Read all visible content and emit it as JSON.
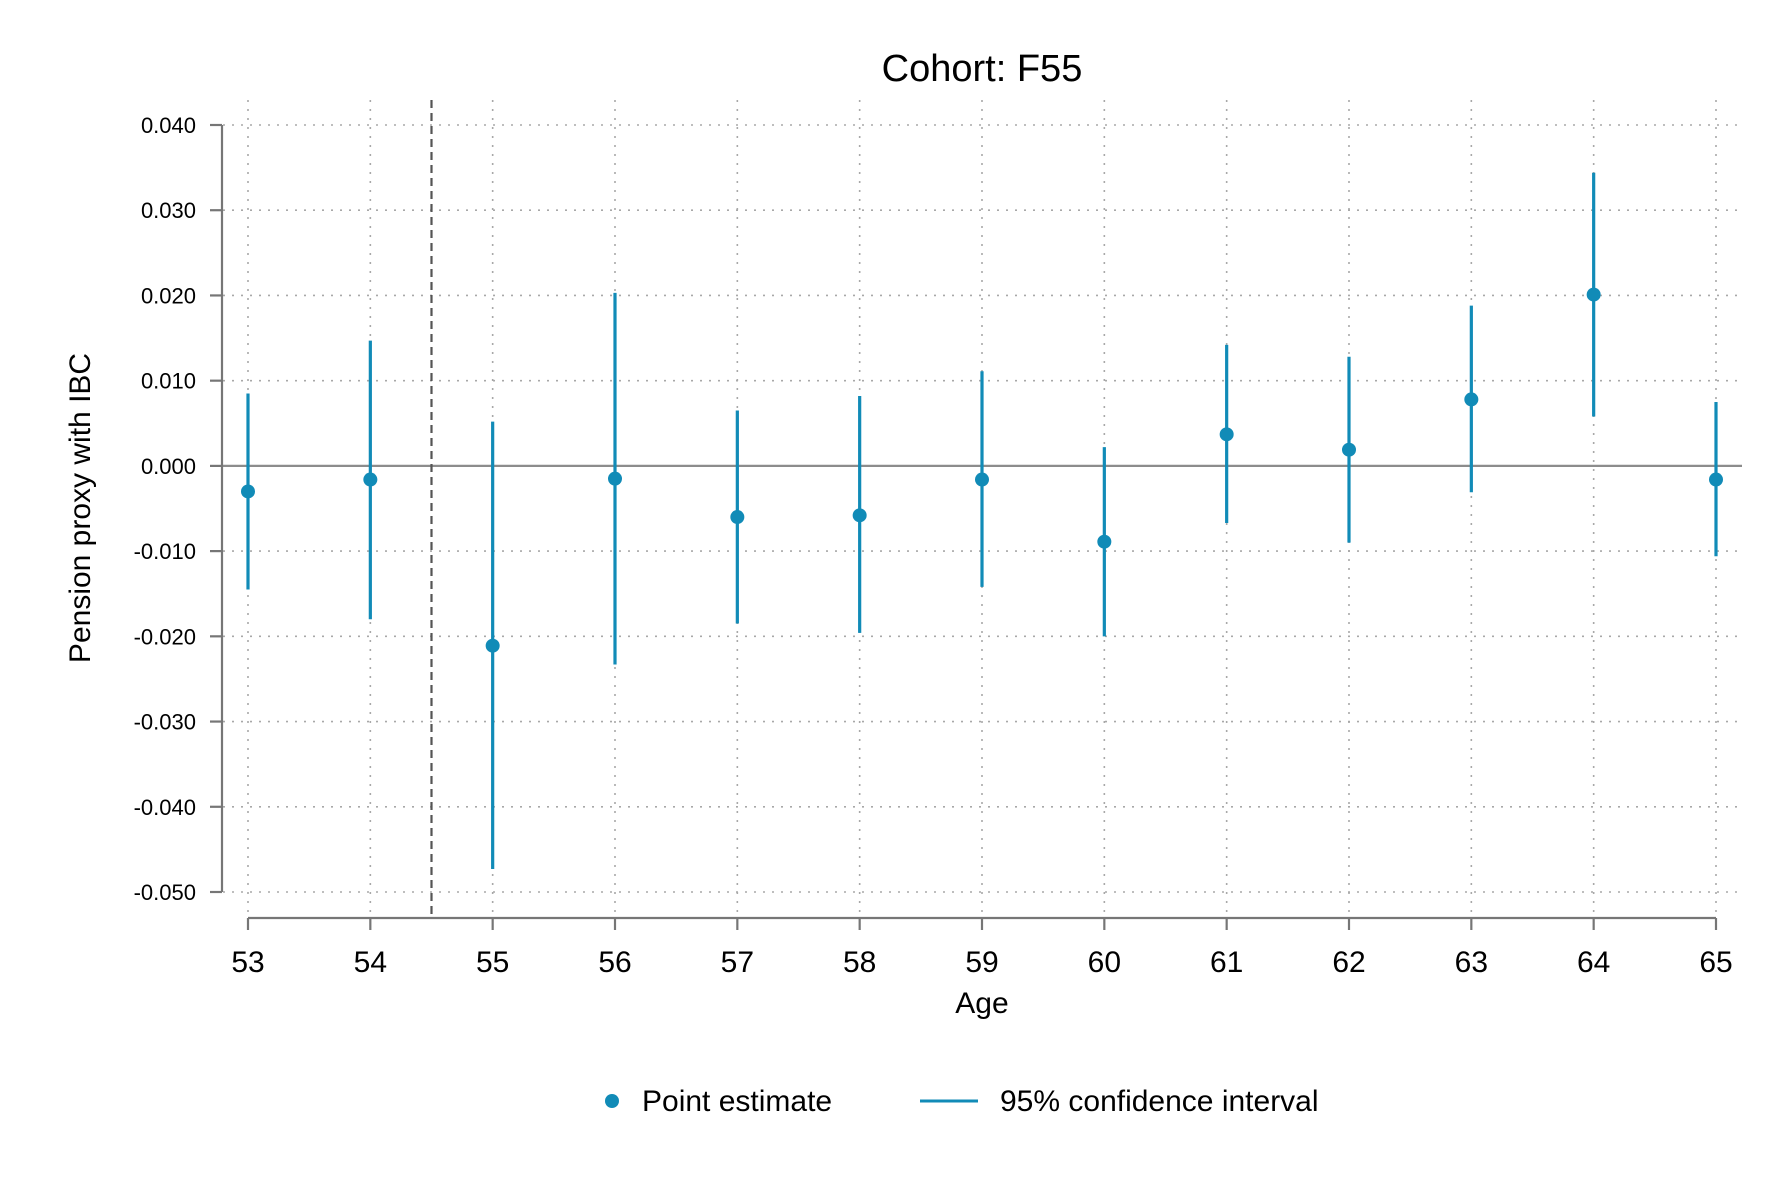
{
  "chart_data": {
    "type": "scatter",
    "title": "Cohort: F55",
    "xlabel": "Age",
    "ylabel": "Pension proxy with IBC",
    "x": [
      53,
      54,
      55,
      56,
      57,
      58,
      59,
      60,
      61,
      62,
      63,
      64,
      65
    ],
    "x_tick_labels": [
      "53",
      "54",
      "55",
      "56",
      "57",
      "58",
      "59",
      "60",
      "61",
      "62",
      "63",
      "64",
      "65"
    ],
    "y_ticks": [
      -0.05,
      -0.04,
      -0.03,
      -0.02,
      -0.01,
      0.0,
      0.01,
      0.02,
      0.03,
      0.04
    ],
    "y_tick_labels": [
      "-0.050",
      "-0.040",
      "-0.030",
      "-0.020",
      "-0.010",
      "0.000",
      "0.010",
      "0.020",
      "0.030",
      "0.040"
    ],
    "xlim": [
      53,
      65
    ],
    "ylim": [
      -0.05,
      0.04
    ],
    "grid": true,
    "reference_line_y": 0.0,
    "reference_line_x": 54.5,
    "series": [
      {
        "name": "Point estimate",
        "values": [
          -0.003,
          -0.0016,
          -0.0211,
          -0.0015,
          -0.006,
          -0.0058,
          -0.0016,
          -0.0089,
          0.0037,
          0.0019,
          0.0078,
          0.0201,
          -0.0016
        ]
      },
      {
        "name": "95% confidence interval",
        "lower": [
          -0.0145,
          -0.018,
          -0.0473,
          -0.0233,
          -0.0185,
          -0.0196,
          -0.0142,
          -0.02,
          -0.0067,
          -0.009,
          -0.0031,
          0.0058,
          -0.0106
        ],
        "upper": [
          0.0085,
          0.0147,
          0.0052,
          0.0203,
          0.0065,
          0.0082,
          0.0111,
          0.0022,
          0.0142,
          0.0128,
          0.0188,
          0.0344,
          0.0075
        ]
      }
    ],
    "legend": {
      "position": "bottom",
      "items": [
        "Point estimate",
        "95% confidence interval"
      ]
    },
    "colors": {
      "marker": "#118bb7",
      "axis": "#767676",
      "grid": "#a8a8a8",
      "zero_line": "#8c8c8c",
      "vline": "#555555"
    }
  }
}
